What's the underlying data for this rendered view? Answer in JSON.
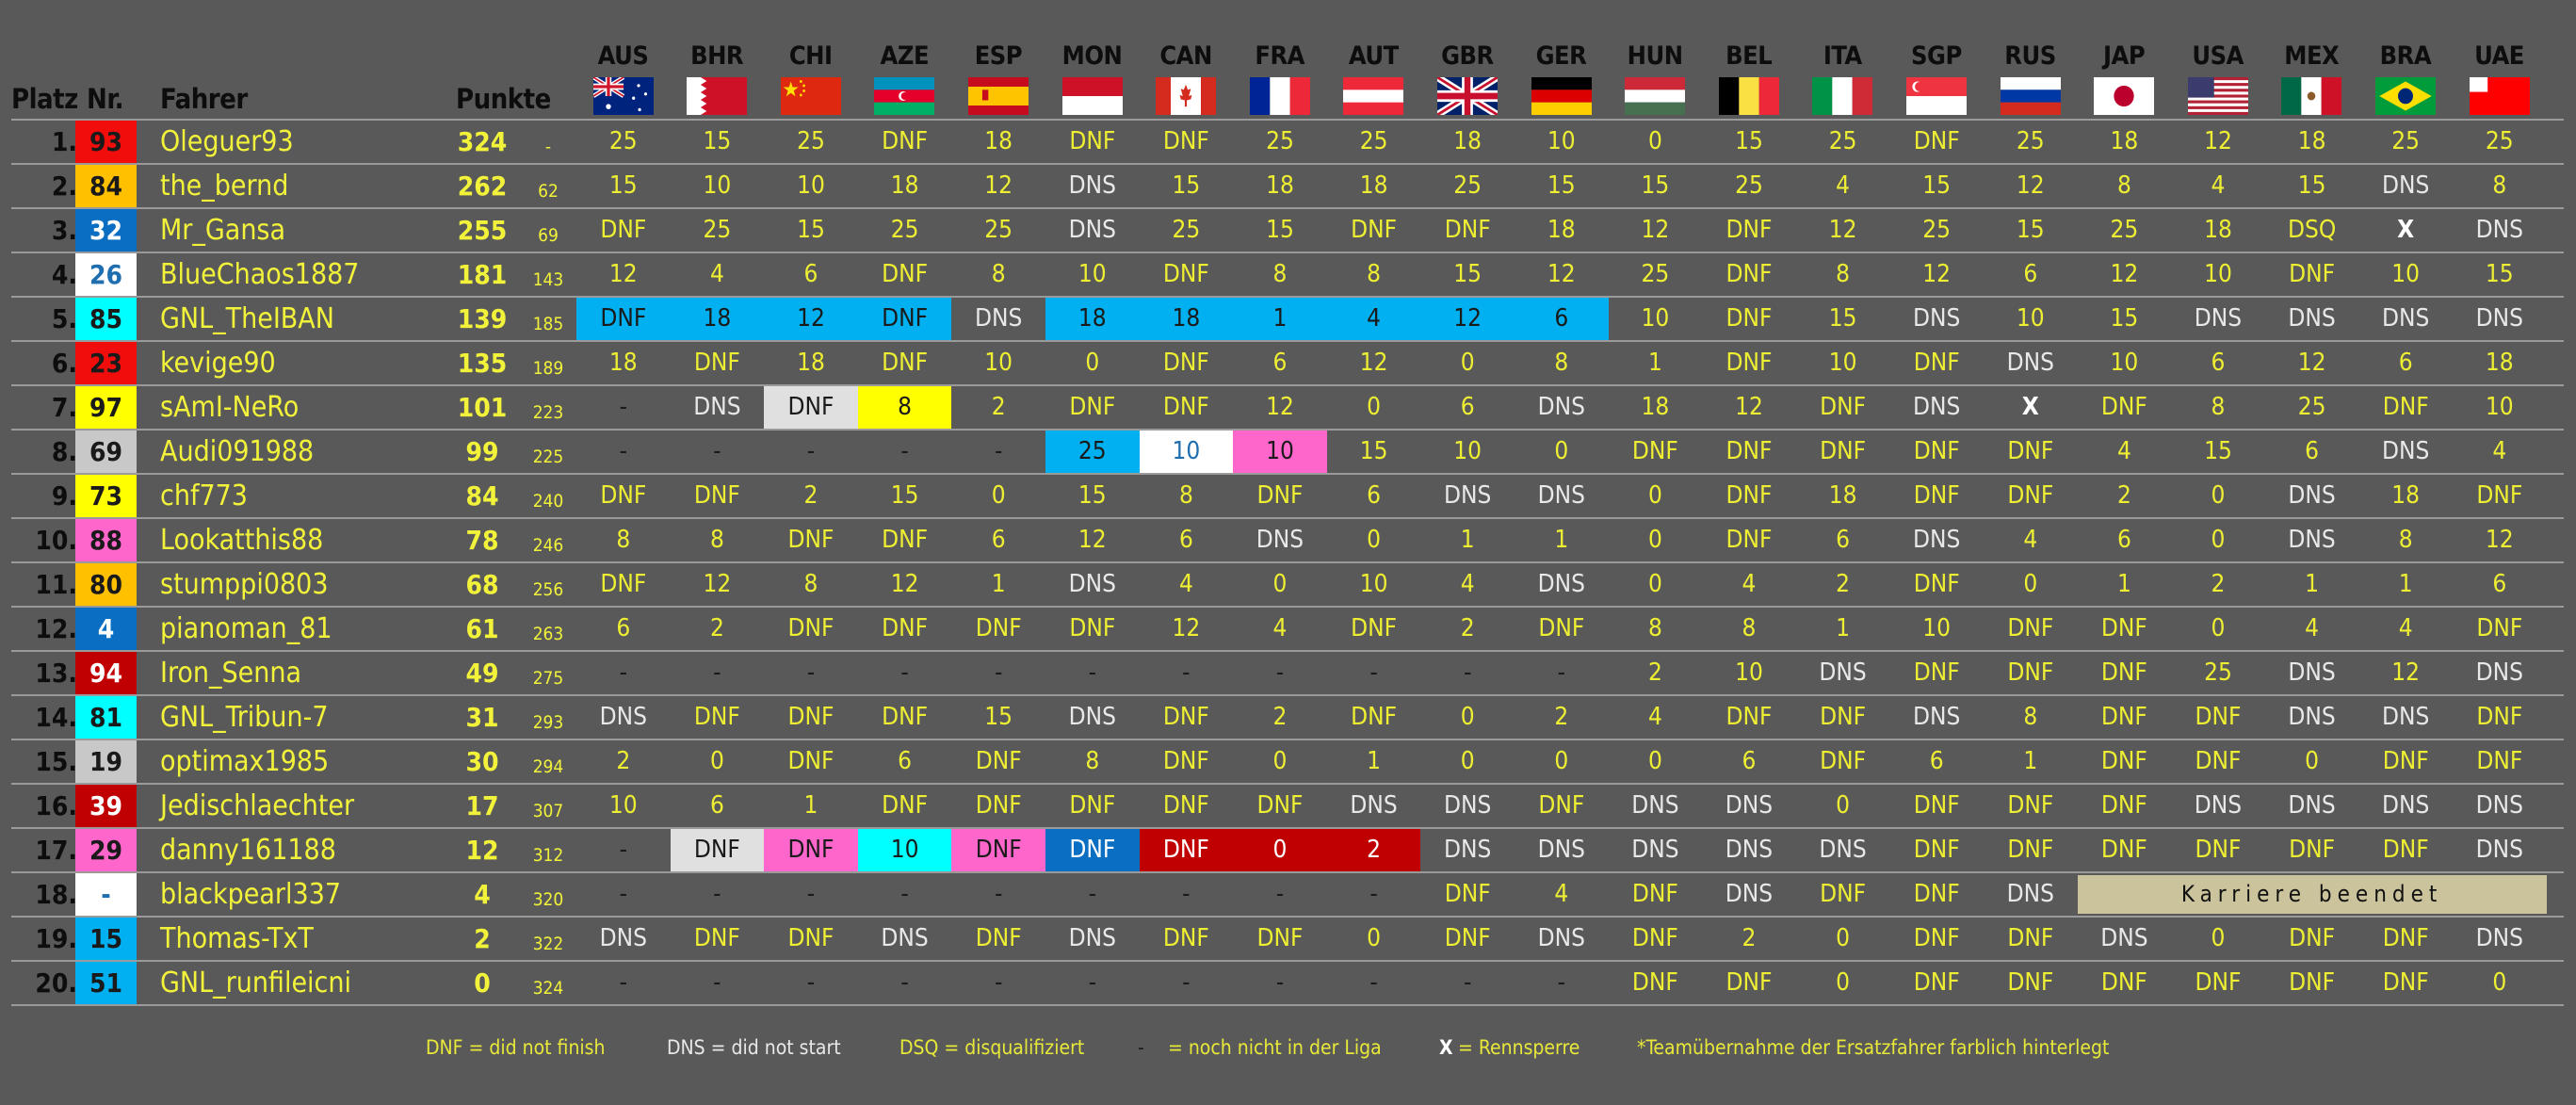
{
  "header": {
    "platz": "Platz",
    "nr": "Nr.",
    "fahrer": "Fahrer",
    "punkte": "Punkte"
  },
  "races": [
    {
      "code": "AUS",
      "flag": "australia-flag"
    },
    {
      "code": "BHR",
      "flag": "bahrain-flag"
    },
    {
      "code": "CHI",
      "flag": "china-flag"
    },
    {
      "code": "AZE",
      "flag": "azerbaijan-flag"
    },
    {
      "code": "ESP",
      "flag": "spain-flag"
    },
    {
      "code": "MON",
      "flag": "monaco-flag"
    },
    {
      "code": "CAN",
      "flag": "canada-flag"
    },
    {
      "code": "FRA",
      "flag": "france-flag"
    },
    {
      "code": "AUT",
      "flag": "austria-flag"
    },
    {
      "code": "GBR",
      "flag": "uk-flag"
    },
    {
      "code": "GER",
      "flag": "germany-flag"
    },
    {
      "code": "HUN",
      "flag": "hungary-flag"
    },
    {
      "code": "BEL",
      "flag": "belgium-flag"
    },
    {
      "code": "ITA",
      "flag": "italy-flag"
    },
    {
      "code": "SGP",
      "flag": "singapore-flag"
    },
    {
      "code": "RUS",
      "flag": "russia-flag"
    },
    {
      "code": "JAP",
      "flag": "japan-flag"
    },
    {
      "code": "USA",
      "flag": "usa-flag"
    },
    {
      "code": "MEX",
      "flag": "mexico-flag"
    },
    {
      "code": "BRA",
      "flag": "brazil-flag"
    },
    {
      "code": "UAE",
      "flag": "uae-flag"
    }
  ],
  "colors": {
    "red": "#f20d0d",
    "orange": "#ffc000",
    "blue": "#0a6fc2",
    "white": "#ffffff",
    "cyan": "#00ffff",
    "yellow": "#ffff00",
    "grey": "#c8c8c8",
    "pink": "#ff66cc",
    "darkred": "#c00000",
    "lightblue": "#00b0f0",
    "lightgrey": "#e0e0e0",
    "career": "#cbc39c"
  },
  "drivers": [
    {
      "platz": "1.",
      "nr": "93",
      "nr_bg": "#f20d0d",
      "nr_fg": "#1a1a1a",
      "name": "Oleguer93",
      "punkte": "324",
      "gap": "-",
      "results": [
        "25",
        "15",
        "25",
        "DNF",
        "18",
        "DNF",
        "DNF",
        "25",
        "25",
        "18",
        "10",
        "0",
        "15",
        "25",
        "DNF",
        "25",
        "18",
        "12",
        "18",
        "25",
        "25"
      ]
    },
    {
      "platz": "2.",
      "nr": "84",
      "nr_bg": "#ffc000",
      "nr_fg": "#1a1a1a",
      "name": "the_bernd",
      "punkte": "262",
      "gap": "62",
      "results": [
        "15",
        "10",
        "10",
        "18",
        "12",
        "DNS",
        "15",
        "18",
        "18",
        "25",
        "15",
        "15",
        "25",
        "4",
        "15",
        "12",
        "8",
        "4",
        "15",
        "DNS",
        "8"
      ]
    },
    {
      "platz": "3.",
      "nr": "32",
      "nr_bg": "#0a6fc2",
      "nr_fg": "#ffffff",
      "name": "Mr_Gansa",
      "punkte": "255",
      "gap": "69",
      "results": [
        "DNF",
        "25",
        "15",
        "25",
        "25",
        "DNS",
        "25",
        "15",
        "DNF",
        "DNF",
        "18",
        "12",
        "DNF",
        "12",
        "25",
        "15",
        "25",
        "18",
        "DSQ",
        "X",
        "DNS"
      ]
    },
    {
      "platz": "4.",
      "nr": "26",
      "nr_bg": "#ffffff",
      "nr_fg": "#1f6fb0",
      "name": "BlueChaos1887",
      "punkte": "181",
      "gap": "143",
      "results": [
        "12",
        "4",
        "6",
        "DNF",
        "8",
        "10",
        "DNF",
        "8",
        "8",
        "15",
        "12",
        "25",
        "DNF",
        "8",
        "12",
        "6",
        "12",
        "10",
        "DNF",
        "10",
        "15"
      ]
    },
    {
      "platz": "5.",
      "nr": "85",
      "nr_bg": "#00ffff",
      "nr_fg": "#1a1a1a",
      "name": "GNL_TheIBAN",
      "punkte": "139",
      "gap": "185",
      "results": [
        "DNF",
        "18",
        "12",
        "DNF",
        "DNS",
        "18",
        "18",
        "1",
        "4",
        "12",
        "6",
        "10",
        "DNF",
        "15",
        "DNS",
        "10",
        "15",
        "DNS",
        "DNS",
        "DNS",
        "DNS"
      ],
      "highlights": {
        "0": "#00b0f0",
        "1": "#00b0f0",
        "2": "#00b0f0",
        "3": "#00b0f0",
        "5": "#00b0f0",
        "6": "#00b0f0",
        "7": "#00b0f0",
        "8": "#00b0f0",
        "9": "#00b0f0",
        "10": "#00b0f0"
      }
    },
    {
      "platz": "6.",
      "nr": "23",
      "nr_bg": "#f20d0d",
      "nr_fg": "#1a1a1a",
      "name": "kevige90",
      "punkte": "135",
      "gap": "189",
      "results": [
        "18",
        "DNF",
        "18",
        "DNF",
        "10",
        "0",
        "DNF",
        "6",
        "12",
        "0",
        "8",
        "1",
        "DNF",
        "10",
        "DNF",
        "DNS",
        "10",
        "6",
        "12",
        "6",
        "18"
      ]
    },
    {
      "platz": "7.",
      "nr": "97",
      "nr_bg": "#ffff00",
      "nr_fg": "#1a1a1a",
      "name": "sAmI-NeRo",
      "punkte": "101",
      "gap": "223",
      "results": [
        "-",
        "DNS",
        "DNF",
        "8",
        "2",
        "DNF",
        "DNF",
        "12",
        "0",
        "6",
        "DNS",
        "18",
        "12",
        "DNF",
        "DNS",
        "X",
        "DNF",
        "8",
        "25",
        "DNF",
        "10"
      ],
      "highlights": {
        "2": "#e0e0e0",
        "3": "#ffff00"
      }
    },
    {
      "platz": "8.",
      "nr": "69",
      "nr_bg": "#c8c8c8",
      "nr_fg": "#1a1a1a",
      "name": "Audi091988",
      "punkte": "99",
      "gap": "225",
      "results": [
        "-",
        "-",
        "-",
        "-",
        "-",
        "25",
        "10",
        "10",
        "15",
        "10",
        "0",
        "DNF",
        "DNF",
        "DNF",
        "DNF",
        "DNF",
        "4",
        "15",
        "6",
        "DNS",
        "4"
      ],
      "highlights": {
        "5": "#00b0f0",
        "6": "#ffffff",
        "7": "#ff66cc"
      }
    },
    {
      "platz": "9.",
      "nr": "73",
      "nr_bg": "#ffff00",
      "nr_fg": "#1a1a1a",
      "name": "chf773",
      "punkte": "84",
      "gap": "240",
      "results": [
        "DNF",
        "DNF",
        "2",
        "15",
        "0",
        "15",
        "8",
        "DNF",
        "6",
        "DNS",
        "DNS",
        "0",
        "DNF",
        "18",
        "DNF",
        "DNF",
        "2",
        "0",
        "DNS",
        "18",
        "DNF"
      ]
    },
    {
      "platz": "10.",
      "nr": "88",
      "nr_bg": "#ff66cc",
      "nr_fg": "#1a1a1a",
      "name": "Lookatthis88",
      "punkte": "78",
      "gap": "246",
      "results": [
        "8",
        "8",
        "DNF",
        "DNF",
        "6",
        "12",
        "6",
        "DNS",
        "0",
        "1",
        "1",
        "0",
        "DNF",
        "6",
        "DNS",
        "4",
        "6",
        "0",
        "DNS",
        "8",
        "12"
      ]
    },
    {
      "platz": "11.",
      "nr": "80",
      "nr_bg": "#ffc000",
      "nr_fg": "#1a1a1a",
      "name": "stumppi0803",
      "punkte": "68",
      "gap": "256",
      "results": [
        "DNF",
        "12",
        "8",
        "12",
        "1",
        "DNS",
        "4",
        "0",
        "10",
        "4",
        "DNS",
        "0",
        "4",
        "2",
        "DNF",
        "0",
        "1",
        "2",
        "1",
        "1",
        "6"
      ]
    },
    {
      "platz": "12.",
      "nr": "4",
      "nr_bg": "#0a6fc2",
      "nr_fg": "#ffffff",
      "name": "pianoman_81",
      "punkte": "61",
      "gap": "263",
      "results": [
        "6",
        "2",
        "DNF",
        "DNF",
        "DNF",
        "DNF",
        "12",
        "4",
        "DNF",
        "2",
        "DNF",
        "8",
        "8",
        "1",
        "10",
        "DNF",
        "DNF",
        "0",
        "4",
        "4",
        "DNF"
      ]
    },
    {
      "platz": "13.",
      "nr": "94",
      "nr_bg": "#c00000",
      "nr_fg": "#ffffff",
      "name": "Iron_Senna",
      "punkte": "49",
      "gap": "275",
      "results": [
        "-",
        "-",
        "-",
        "-",
        "-",
        "-",
        "-",
        "-",
        "-",
        "-",
        "-",
        "2",
        "10",
        "DNS",
        "DNF",
        "DNF",
        "DNF",
        "25",
        "DNS",
        "12",
        "DNS"
      ]
    },
    {
      "platz": "14.",
      "nr": "81",
      "nr_bg": "#00ffff",
      "nr_fg": "#1a1a1a",
      "name": "GNL_Tribun-7",
      "punkte": "31",
      "gap": "293",
      "results": [
        "DNS",
        "DNF",
        "DNF",
        "DNF",
        "15",
        "DNS",
        "DNF",
        "2",
        "DNF",
        "0",
        "2",
        "4",
        "DNF",
        "DNF",
        "DNS",
        "8",
        "DNF",
        "DNF",
        "DNS",
        "DNS",
        "DNF"
      ]
    },
    {
      "platz": "15.",
      "nr": "19",
      "nr_bg": "#c8c8c8",
      "nr_fg": "#1a1a1a",
      "name": "optimax1985",
      "punkte": "30",
      "gap": "294",
      "results": [
        "2",
        "0",
        "DNF",
        "6",
        "DNF",
        "8",
        "DNF",
        "0",
        "1",
        "0",
        "0",
        "0",
        "6",
        "DNF",
        "6",
        "1",
        "DNF",
        "DNF",
        "0",
        "DNF",
        "DNF"
      ]
    },
    {
      "platz": "16.",
      "nr": "39",
      "nr_bg": "#c00000",
      "nr_fg": "#ffffff",
      "name": "Jedischlaechter",
      "punkte": "17",
      "gap": "307",
      "results": [
        "10",
        "6",
        "1",
        "DNF",
        "DNF",
        "DNF",
        "DNF",
        "DNF",
        "DNS",
        "DNS",
        "DNF",
        "DNS",
        "DNS",
        "0",
        "DNF",
        "DNF",
        "DNF",
        "DNS",
        "DNS",
        "DNS",
        "DNS"
      ]
    },
    {
      "platz": "17.",
      "nr": "29",
      "nr_bg": "#ff66cc",
      "nr_fg": "#1a1a1a",
      "name": "danny161188",
      "punkte": "12",
      "gap": "312",
      "results": [
        "-",
        "DNF",
        "DNF",
        "10",
        "DNF",
        "DNF",
        "DNF",
        "0",
        "2",
        "DNS",
        "DNS",
        "DNS",
        "DNS",
        "DNS",
        "DNF",
        "DNF",
        "DNF",
        "DNF",
        "DNF",
        "DNF",
        "DNS"
      ],
      "highlights": {
        "1": "#e0e0e0",
        "2": "#ff66cc",
        "3": "#00ffff",
        "4": "#ff66cc",
        "5": "#0a6fc2",
        "6": "#c00000",
        "7": "#c00000",
        "8": "#c00000"
      }
    },
    {
      "platz": "18.",
      "nr": "-",
      "nr_bg": "#ffffff",
      "nr_fg": "#1f6fb0",
      "name": "blackpearl337",
      "punkte": "4",
      "gap": "320",
      "results": [
        "-",
        "-",
        "-",
        "-",
        "-",
        "-",
        "-",
        "-",
        "-",
        "DNF",
        "4",
        "DNF",
        "DNS",
        "DNF",
        "DNF",
        "DNS"
      ],
      "career_end": "Karriere beendet"
    },
    {
      "platz": "19.",
      "nr": "15",
      "nr_bg": "#00b0f0",
      "nr_fg": "#1a1a1a",
      "name": "Thomas-TxT",
      "punkte": "2",
      "gap": "322",
      "results": [
        "DNS",
        "DNF",
        "DNF",
        "DNS",
        "DNF",
        "DNS",
        "DNF",
        "DNF",
        "0",
        "DNF",
        "DNS",
        "DNF",
        "2",
        "0",
        "DNF",
        "DNF",
        "DNS",
        "0",
        "DNF",
        "DNF",
        "DNS"
      ]
    },
    {
      "platz": "20.",
      "nr": "51",
      "nr_bg": "#00b0f0",
      "nr_fg": "#1a1a1a",
      "name": "GNL_runfileicni",
      "punkte": "0",
      "gap": "324",
      "results": [
        "-",
        "-",
        "-",
        "-",
        "-",
        "-",
        "-",
        "-",
        "-",
        "-",
        "-",
        "DNF",
        "DNF",
        "0",
        "DNF",
        "DNF",
        "DNF",
        "DNF",
        "DNF",
        "DNF",
        "0"
      ]
    }
  ],
  "legend": {
    "dnf": "DNF = did not finish",
    "dns": "DNS = did not start",
    "dsq": "DSQ = disqualifiziert",
    "dash_symbol": "-",
    "dash": "= noch nicht in der Liga",
    "x_symbol": "X",
    "x": "= Rennsperre",
    "note": "*Teamübernahme der Ersatzfahrer farblich hinterlegt"
  }
}
